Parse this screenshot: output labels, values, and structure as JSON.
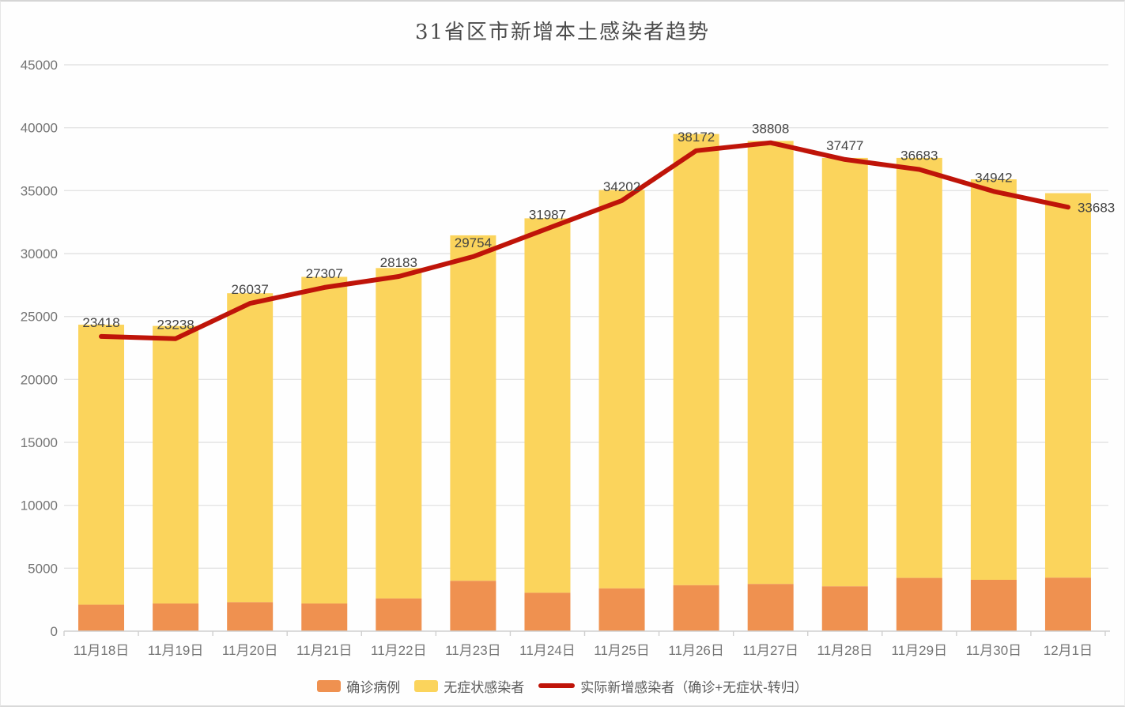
{
  "chart_data": {
    "type": "stacked-bar+line",
    "title": "31省区市新增本土感染者趋势",
    "categories": [
      "11月18日",
      "11月19日",
      "11月20日",
      "11月21日",
      "11月22日",
      "11月23日",
      "11月24日",
      "11月25日",
      "11月26日",
      "11月27日",
      "11月28日",
      "11月29日",
      "11月30日",
      "12月1日"
    ],
    "series": [
      {
        "name": "确诊病例",
        "kind": "bar",
        "stack": "total",
        "color": "#EF9150",
        "values": [
          2100,
          2200,
          2300,
          2200,
          2600,
          4000,
          3050,
          3400,
          3650,
          3750,
          3560,
          4230,
          4080,
          4250
        ]
      },
      {
        "name": "无症状感染者",
        "kind": "bar",
        "stack": "total",
        "color": "#FBD45C",
        "values": [
          22250,
          22050,
          24550,
          25950,
          26250,
          27450,
          29750,
          31650,
          35850,
          35200,
          34040,
          33370,
          31820,
          30550
        ]
      },
      {
        "name": "实际新增感染者（确诊+无症状-转归）",
        "kind": "line",
        "color": "#BF1409",
        "values": [
          23418,
          23238,
          26037,
          27307,
          28183,
          29754,
          31987,
          34202,
          38172,
          38808,
          37477,
          36683,
          34942,
          33683
        ],
        "point_labels": [
          "23418",
          "23238",
          "26037",
          "27307",
          "28183",
          "29754",
          "31987",
          "34202",
          "38172",
          "38808",
          "37477",
          "36683",
          "34942",
          "33683"
        ]
      }
    ],
    "ylim": [
      0,
      45000
    ],
    "ytick_step": 5000,
    "ytick_labels": [
      "0",
      "5000",
      "10000",
      "15000",
      "20000",
      "25000",
      "30000",
      "35000",
      "40000",
      "45000"
    ],
    "grid": "horizontal",
    "legend_position": "bottom",
    "colors": {
      "grid_line": "#e4e4e4",
      "axis_line": "#cfcfcf",
      "axis_text": "#757575",
      "data_label_text": "#434343",
      "title_text": "#4a4a4a",
      "background": "#fefefe"
    }
  }
}
